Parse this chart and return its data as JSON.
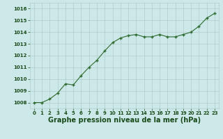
{
  "x": [
    0,
    1,
    2,
    3,
    4,
    5,
    6,
    7,
    8,
    9,
    10,
    11,
    12,
    13,
    14,
    15,
    16,
    17,
    18,
    19,
    20,
    21,
    22,
    23
  ],
  "y": [
    1008.0,
    1008.0,
    1008.3,
    1008.8,
    1009.6,
    1009.5,
    1010.3,
    1011.0,
    1011.6,
    1012.4,
    1013.1,
    1013.5,
    1013.7,
    1013.8,
    1013.6,
    1013.6,
    1013.8,
    1013.6,
    1013.6,
    1013.8,
    1014.0,
    1014.5,
    1015.2,
    1015.6
  ],
  "line_color": "#2d6a2d",
  "marker_color": "#2d6a2d",
  "bg_color": "#cce8e8",
  "grid_color": "#b0cccc",
  "xlabel": "Graphe pression niveau de la mer (hPa)",
  "xlabel_color": "#1a4a1a",
  "xlim": [
    -0.5,
    23.5
  ],
  "ylim": [
    1007.5,
    1016.5
  ],
  "yticks": [
    1008,
    1009,
    1010,
    1011,
    1012,
    1013,
    1014,
    1015,
    1016
  ],
  "xticks": [
    0,
    1,
    2,
    3,
    4,
    5,
    6,
    7,
    8,
    9,
    10,
    11,
    12,
    13,
    14,
    15,
    16,
    17,
    18,
    19,
    20,
    21,
    22,
    23
  ],
  "tick_color": "#1a4a1a",
  "tick_fontsize": 5.0,
  "xlabel_fontsize": 7.0,
  "marker_size": 3.5,
  "line_width": 0.8
}
